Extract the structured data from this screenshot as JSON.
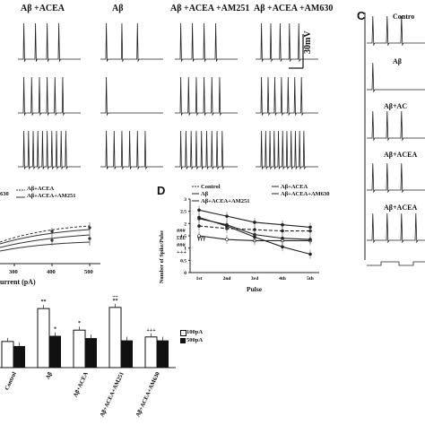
{
  "panel_a": {
    "column_titles": [
      "Aβ +ACEA",
      "Aβ",
      "Aβ +ACEA +AM251",
      "Aβ +ACEA +AM630"
    ],
    "scale_bar": "30mV"
  },
  "panel_b": {
    "legend": [
      "Aβ+ACEA",
      "Aβ+ACEA+AM251"
    ],
    "legend_partial": "630",
    "x_ticks": [
      "300",
      "400",
      "500"
    ],
    "x_label": "urrent (pA)"
  },
  "panel_c": {
    "letter": "C",
    "row_labels": [
      "Contro",
      "Aβ",
      "Aβ+AC",
      "Aβ+ACEA",
      "Aβ+ACEA"
    ]
  },
  "panel_d": {
    "letter": "D",
    "legend": [
      "Control",
      "Aβ",
      "Aβ+ACEA+AM251",
      "Aβ+ACEA",
      "Aβ+ACEA+AM630"
    ],
    "y_label": "Number of Spike/Pulse",
    "x_label": "Pulse",
    "sig_marks": [
      "£££",
      "###",
      "+++",
      "γγγ",
      "###"
    ],
    "chart_data": {
      "type": "line",
      "categories": [
        "1st",
        "2nd",
        "3rd",
        "4th",
        "5th"
      ],
      "yticks": [
        "0",
        "0.5",
        "1",
        "1.5",
        "2",
        "2.5",
        "3"
      ],
      "ylim": [
        0,
        3
      ],
      "series": [
        {
          "name": "Control",
          "values": [
            1.9,
            1.8,
            1.75,
            1.7,
            1.7
          ],
          "dash": "4,2"
        },
        {
          "name": "Aβ",
          "values": [
            2.55,
            2.3,
            2.05,
            1.95,
            1.85
          ],
          "dash": ""
        },
        {
          "name": "Aβ+ACEA",
          "values": [
            1.5,
            1.35,
            1.3,
            1.3,
            1.3
          ],
          "dash": ""
        },
        {
          "name": "Aβ+ACEA+AM251",
          "values": [
            2.2,
            1.95,
            1.55,
            1.4,
            1.35
          ],
          "dash": ""
        },
        {
          "name": "Aβ+ACEA+AM630",
          "values": [
            2.25,
            1.9,
            1.45,
            1.05,
            0.75
          ],
          "dash": ""
        }
      ]
    }
  },
  "panel_e": {
    "legend": [
      "100pA",
      "500pA"
    ],
    "categories": [
      "Control",
      "Aβ",
      "Aβ+ACEA",
      "Aβ+ACEA+AM251",
      "Aβ+ACEA+AM630"
    ],
    "sig_100": [
      "",
      "**",
      "*",
      "**",
      "+++"
    ],
    "sig_100_top": [
      "",
      "",
      "",
      "$$",
      ""
    ],
    "sig_500": [
      "",
      "*",
      "",
      "",
      ""
    ],
    "chart_data": {
      "type": "bar",
      "categories": [
        "Control",
        "Aβ",
        "Aβ+ACEA",
        "Aβ+ACEA+AM251",
        "Aβ+ACEA+AM630"
      ],
      "series": [
        {
          "name": "100pA",
          "values": [
            2.3,
            5.2,
            3.3,
            5.3,
            2.7
          ]
        },
        {
          "name": "500pA",
          "values": [
            1.9,
            2.8,
            2.6,
            2.4,
            2.4
          ]
        }
      ],
      "ylim": [
        0,
        6
      ]
    }
  }
}
